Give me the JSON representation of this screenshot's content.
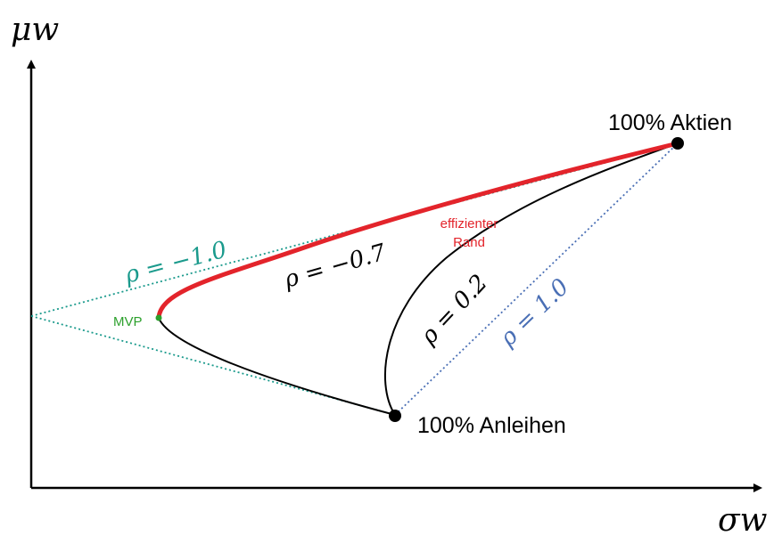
{
  "axes": {
    "y_label": "μw",
    "x_label": "σw"
  },
  "points": {
    "stocks": "100% Aktien",
    "bonds": "100% Anleihen",
    "mvp": "MVP"
  },
  "curves": {
    "rho_neg1": "ρ = −1.0",
    "rho_neg07": "ρ = −0.7",
    "rho_02": "ρ = 0.2",
    "rho_1": "ρ = 1.0"
  },
  "efficient_frontier": {
    "line1": "effizienter",
    "line2": "Rand"
  },
  "colors": {
    "efficient_frontier": "#e3242b",
    "rho_neg1": "#1a9a8c",
    "rho_1": "#4a6fb5",
    "mvp": "#2ca02c",
    "axes": "#000000"
  }
}
